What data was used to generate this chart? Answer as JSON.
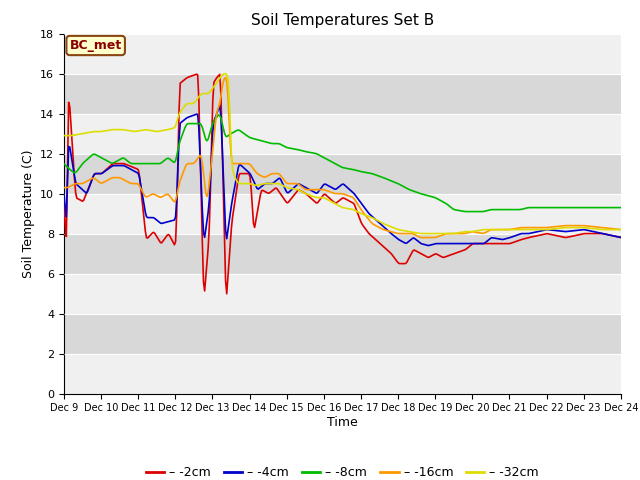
{
  "title": "Soil Temperatures Set B",
  "xlabel": "Time",
  "ylabel": "Soil Temperature (C)",
  "ylim": [
    0,
    18
  ],
  "yticks": [
    0,
    2,
    4,
    6,
    8,
    10,
    12,
    14,
    16,
    18
  ],
  "annotation_text": "BC_met",
  "series_colors": {
    "-2cm": "#dd0000",
    "-4cm": "#0000cc",
    "-8cm": "#00bb00",
    "-16cm": "#ff9900",
    "-32cm": "#dddd00"
  },
  "background_color": "#ffffff",
  "plot_bg_color": "#e8e8e8",
  "band_color_light": "#f0f0f0",
  "band_color_dark": "#d8d8d8",
  "grid_color": "#ffffff",
  "n_points": 480,
  "x_start": 9,
  "x_end": 24,
  "xtick_labels": [
    "Dec 9",
    "Dec 10",
    "Dec 11",
    "Dec 12",
    "Dec 13",
    "Dec 14",
    "Dec 15",
    "Dec 16",
    "Dec 17",
    "Dec 18",
    "Dec 19",
    "Dec 20",
    "Dec 21",
    "Dec 22",
    "Dec 23",
    "Dec 24"
  ],
  "xtick_positions": [
    9,
    10,
    11,
    12,
    13,
    14,
    15,
    16,
    17,
    18,
    19,
    20,
    21,
    22,
    23,
    24
  ]
}
